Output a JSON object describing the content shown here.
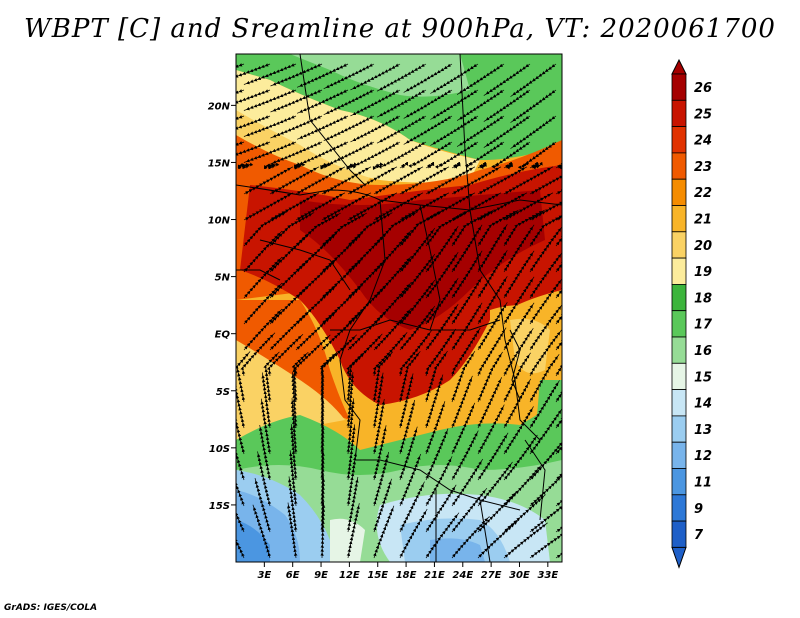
{
  "title": "WBPT [C] and Sreamline at 900hPa, VT: 2020061700",
  "credit": "GrADS: IGES/COLA",
  "map": {
    "lat_labels": [
      "20N",
      "15N",
      "10N",
      "5N",
      "EQ",
      "5S",
      "10S",
      "15S"
    ],
    "lat_values": [
      20,
      15,
      10,
      5,
      0,
      -5,
      -10,
      -15
    ],
    "lon_labels": [
      "3E",
      "6E",
      "9E",
      "12E",
      "15E",
      "18E",
      "21E",
      "24E",
      "27E",
      "30E",
      "33E"
    ],
    "lon_values": [
      3,
      6,
      9,
      12,
      15,
      18,
      21,
      24,
      27,
      30,
      33
    ],
    "lat_range": [
      -20,
      24.5
    ],
    "lon_range": [
      0,
      34.5
    ]
  },
  "colorbar": {
    "labels": [
      "26",
      "25",
      "24",
      "23",
      "22",
      "21",
      "20",
      "19",
      "18",
      "17",
      "16",
      "15",
      "14",
      "13",
      "12",
      "11",
      "9",
      "7"
    ],
    "colors": [
      "#a50000",
      "#c81400",
      "#e13200",
      "#f05a00",
      "#f58c00",
      "#f8b428",
      "#fad264",
      "#fcec9c",
      "#3cb43c",
      "#5ac85a",
      "#96dc96",
      "#e6f5e6",
      "#c8e6f5",
      "#9bcdf0",
      "#78b4eb",
      "#4b96e1",
      "#2d78d7",
      "#1e5fc8"
    ],
    "bottom_color": "#1e5fc8"
  }
}
